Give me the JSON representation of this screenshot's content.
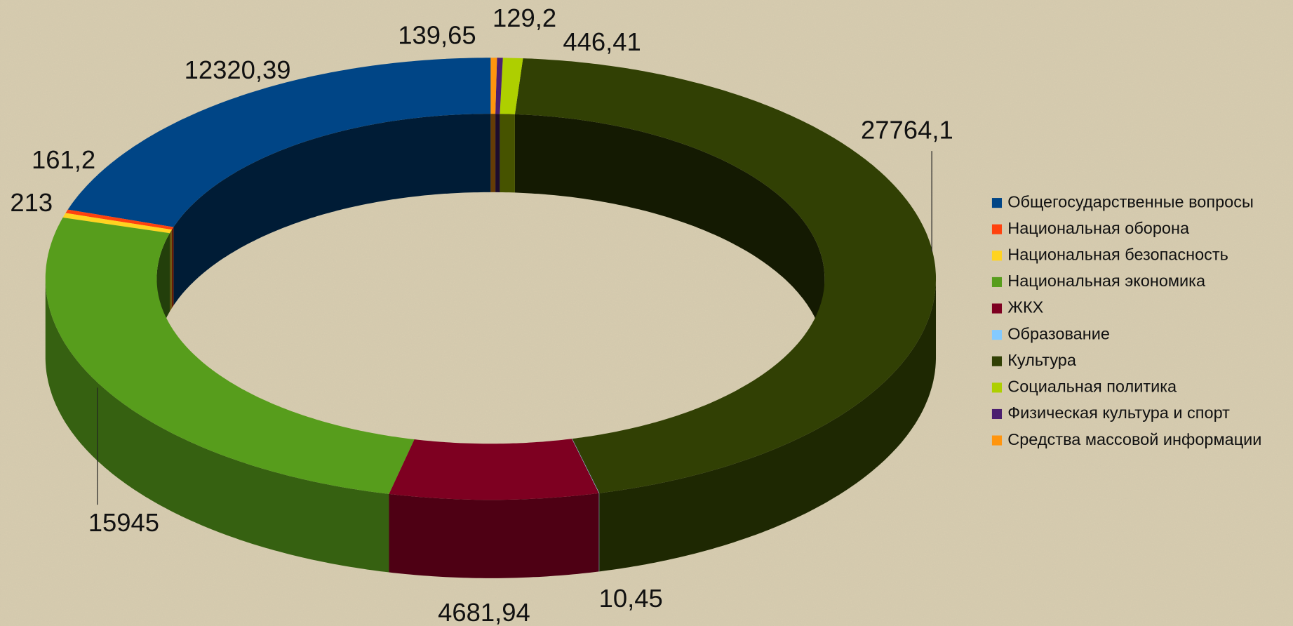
{
  "chart_data": {
    "type": "donut3d",
    "categories": [
      "Общегосударственные вопросы",
      "Национальная оборона",
      "Национальная безопасность",
      "Национальная экономика",
      "ЖКХ",
      "Образование",
      "Культура",
      "Социальная политика",
      "Физическая культура и спорт",
      "Средства массовой информации"
    ],
    "values": [
      12320.39,
      161.2,
      213,
      15945,
      4681.94,
      10.45,
      27764.1,
      446.41,
      129.2,
      139.65
    ],
    "value_labels": [
      "12320,39",
      "161,2",
      "213",
      "15945",
      "4681,94",
      "10,45",
      "27764,1",
      "446,41",
      "129,2",
      "139,65"
    ],
    "colors": [
      "#004586",
      "#ff420e",
      "#ffd320",
      "#579d1c",
      "#7e0021",
      "#83caff",
      "#314004",
      "#aecf00",
      "#4b1f6f",
      "#ff950e"
    ],
    "legend": "right"
  }
}
